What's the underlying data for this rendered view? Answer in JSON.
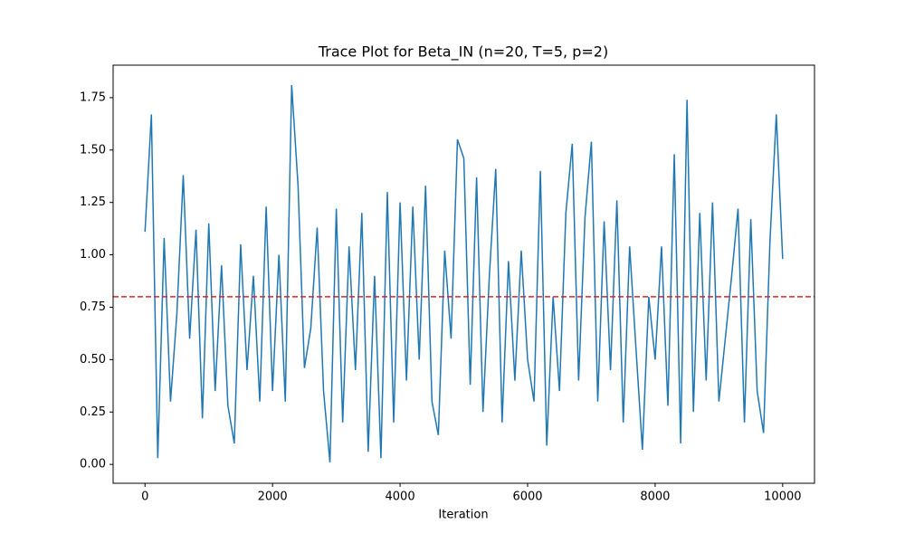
{
  "chart_data": {
    "type": "line",
    "title": "Trace Plot for Beta_IN (n=20, T=5, p=2)",
    "x_label": "Iteration",
    "x": [
      0,
      100,
      200,
      300,
      400,
      500,
      600,
      700,
      800,
      900,
      1000,
      1100,
      1200,
      1300,
      1400,
      1500,
      1600,
      1700,
      1800,
      1900,
      2000,
      2100,
      2200,
      2300,
      2400,
      2500,
      2600,
      2700,
      2800,
      2900,
      3000,
      3100,
      3200,
      3300,
      3400,
      3500,
      3600,
      3700,
      3800,
      3900,
      4000,
      4100,
      4200,
      4300,
      4400,
      4500,
      4600,
      4700,
      4800,
      4900,
      5000,
      5100,
      5200,
      5300,
      5400,
      5500,
      5600,
      5700,
      5800,
      5900,
      6000,
      6100,
      6200,
      6300,
      6400,
      6500,
      6600,
      6700,
      6800,
      6900,
      7000,
      7100,
      7200,
      7300,
      7400,
      7500,
      7600,
      7700,
      7800,
      7900,
      8000,
      8100,
      8200,
      8300,
      8400,
      8500,
      8600,
      8700,
      8800,
      8900,
      9000,
      9100,
      9200,
      9300,
      9400,
      9500,
      9600,
      9700,
      9800,
      9900,
      10000
    ],
    "series": [
      {
        "color": "#1f77b4",
        "values": [
          1.11,
          1.67,
          0.03,
          1.08,
          0.3,
          0.72,
          1.38,
          0.6,
          1.12,
          0.22,
          1.15,
          0.35,
          0.95,
          0.28,
          0.1,
          1.05,
          0.45,
          0.9,
          0.3,
          1.23,
          0.35,
          1.0,
          0.3,
          1.81,
          1.33,
          0.46,
          0.65,
          1.13,
          0.35,
          0.01,
          1.22,
          0.2,
          1.04,
          0.45,
          1.2,
          0.06,
          0.9,
          0.03,
          1.3,
          0.2,
          1.25,
          0.4,
          1.23,
          0.5,
          1.33,
          0.3,
          0.14,
          1.02,
          0.6,
          1.55,
          1.46,
          0.38,
          1.37,
          0.25,
          0.9,
          1.41,
          0.2,
          0.97,
          0.4,
          1.02,
          0.5,
          0.3,
          1.4,
          0.09,
          0.8,
          0.35,
          1.2,
          1.53,
          0.4,
          1.18,
          1.54,
          0.3,
          1.16,
          0.45,
          1.26,
          0.2,
          1.04,
          0.55,
          0.07,
          0.8,
          0.5,
          1.04,
          0.28,
          1.48,
          0.1,
          1.74,
          0.25,
          1.2,
          0.4,
          1.25,
          0.3,
          0.6,
          0.9,
          1.22,
          0.2,
          1.17,
          0.35,
          0.15,
          1.06,
          1.67,
          0.98
        ]
      }
    ],
    "reference_line": {
      "value": 0.8,
      "color": "#d62728"
    },
    "xlim": [
      -500,
      10499
    ],
    "ylim": [
      -0.09,
      1.905
    ],
    "xticks": [
      0,
      2000,
      4000,
      6000,
      8000,
      10000
    ],
    "yticks": [
      {
        "value": 0,
        "label": "0.00"
      },
      {
        "value": 0.25,
        "label": "0.25"
      },
      {
        "value": 0.5,
        "label": "0.50"
      },
      {
        "value": 0.75,
        "label": "0.75"
      },
      {
        "value": 1,
        "label": "1.00"
      },
      {
        "value": 1.25,
        "label": "1.25"
      },
      {
        "value": 1.5,
        "label": "1.50"
      },
      {
        "value": 1.75,
        "label": "1.75"
      }
    ]
  }
}
